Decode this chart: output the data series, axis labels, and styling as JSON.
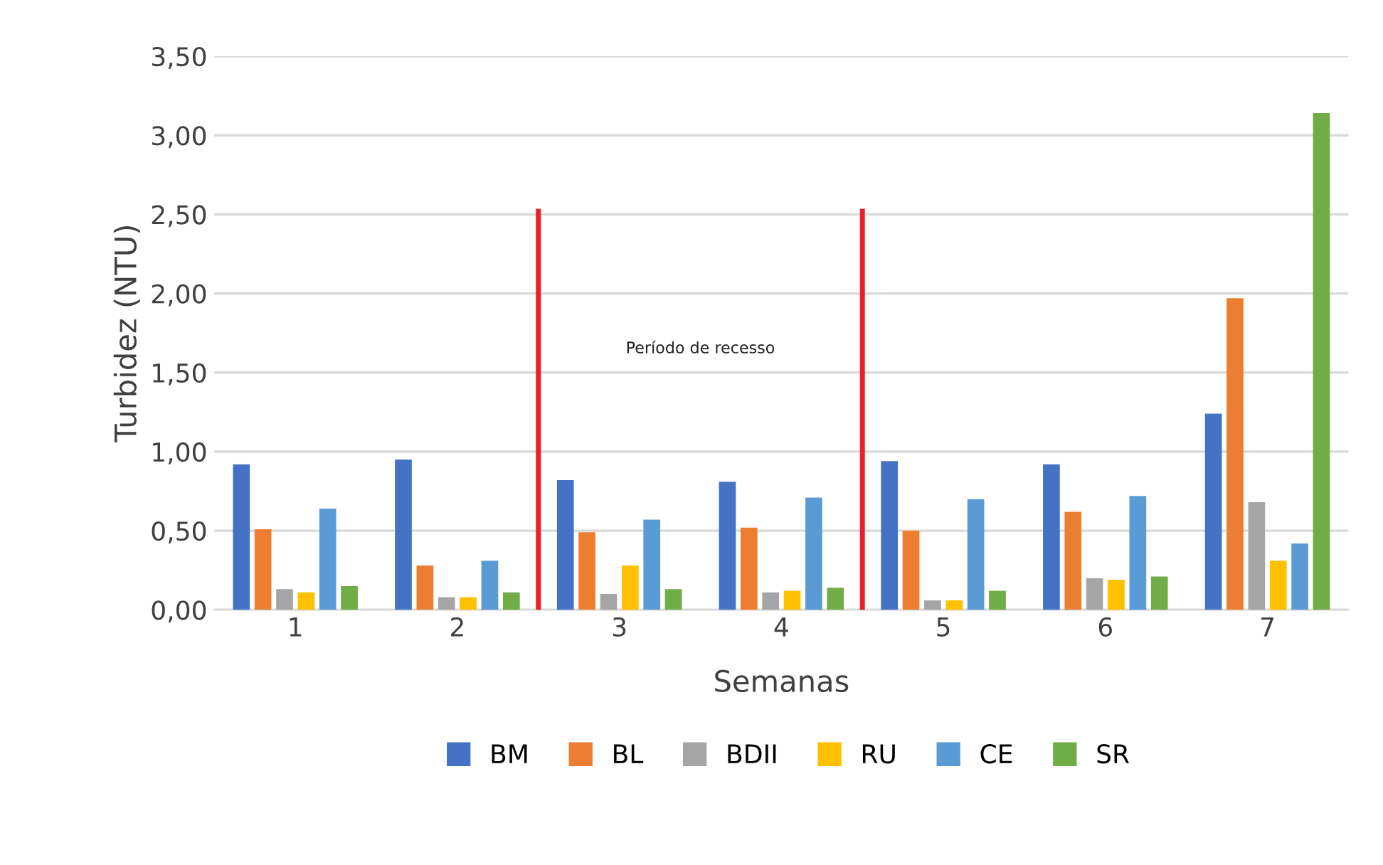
{
  "chart_data": {
    "type": "bar",
    "xlabel": "Semanas",
    "ylabel": "Turbidez (NTU)",
    "categories": [
      "1",
      "2",
      "3",
      "4",
      "5",
      "6",
      "7"
    ],
    "series": [
      {
        "name": "BM",
        "color": "#4472c4",
        "values": [
          0.92,
          0.95,
          0.82,
          0.81,
          0.94,
          0.92,
          1.24
        ]
      },
      {
        "name": "BL",
        "color": "#ed7d31",
        "values": [
          0.51,
          0.28,
          0.49,
          0.52,
          0.5,
          0.62,
          1.97
        ]
      },
      {
        "name": "BDII",
        "color": "#a5a5a5",
        "values": [
          0.13,
          0.08,
          0.1,
          0.11,
          0.06,
          0.2,
          0.68
        ]
      },
      {
        "name": "RU",
        "color": "#ffc000",
        "values": [
          0.11,
          0.08,
          0.28,
          0.12,
          0.06,
          0.19,
          0.31
        ]
      },
      {
        "name": "CE",
        "color": "#5b9bd5",
        "values": [
          0.64,
          0.31,
          0.57,
          0.71,
          0.7,
          0.72,
          0.42
        ]
      },
      {
        "name": "SR",
        "color": "#70ad47",
        "values": [
          0.15,
          0.11,
          0.13,
          0.14,
          0.12,
          0.21,
          3.14
        ]
      }
    ],
    "ylim": [
      0,
      3.5
    ],
    "yticks": [
      {
        "value": 0,
        "label": "0,00"
      },
      {
        "value": 0.5,
        "label": "0,50"
      },
      {
        "value": 1,
        "label": "1,00"
      },
      {
        "value": 1.5,
        "label": "1,50"
      },
      {
        "value": 2,
        "label": "2,00"
      },
      {
        "value": 2.5,
        "label": "2,50"
      },
      {
        "value": 3,
        "label": "3,00"
      },
      {
        "value": 3.5,
        "label": "3,50"
      }
    ],
    "grid": "y",
    "legend": "bottom",
    "annotations": [
      "Período de recesso"
    ]
  }
}
